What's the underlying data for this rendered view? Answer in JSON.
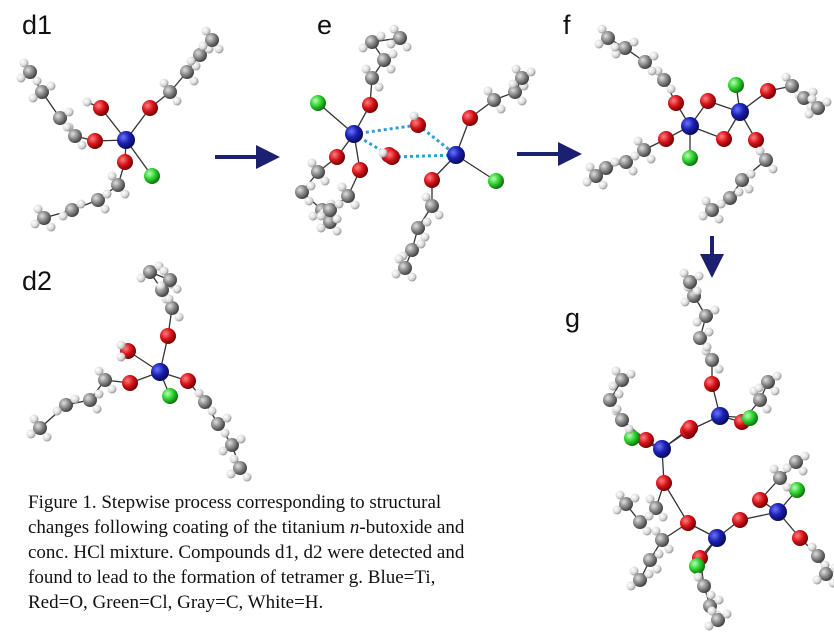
{
  "panels": {
    "d1": "d1",
    "d2": "d2",
    "e": "e",
    "f": "f",
    "g": "g"
  },
  "caption": {
    "line1": "Figure 1. Stepwise process corresponding to structural",
    "line2_pre": "changes following coating of the titanium ",
    "line2_italic": "n",
    "line2_post": "-butoxide and",
    "line3": "conc. HCl mixture. Compounds d1, d2 were detected and",
    "line4": "found to lead to the formation of tetramer g. Blue=Ti,",
    "line5": "Red=O, Green=Cl, Gray=C, White=H."
  },
  "colors": {
    "Ti": "#1a1fb0",
    "O": "#d8141a",
    "Cl": "#2ed12e",
    "C": "#8a8a8a",
    "H": "#dcdcdc",
    "arrow": "#1c2070",
    "hbond": "#2e9ed8"
  }
}
